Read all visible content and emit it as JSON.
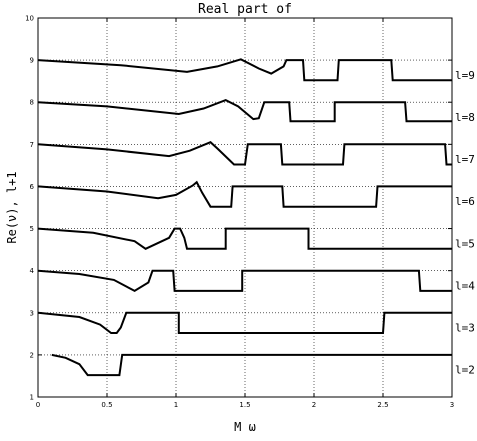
{
  "chart_data": {
    "type": "line",
    "title": "Real part of",
    "xlabel": "M ω",
    "ylabel": "Re(ν), l+1",
    "xlim": [
      0,
      3
    ],
    "ylim": [
      1,
      10
    ],
    "x_ticks": [
      0,
      0.5,
      1,
      1.5,
      2,
      2.5,
      3
    ],
    "x_tick_labels": [
      "0",
      "0.5",
      "1",
      "1.5",
      "2",
      "2.5",
      "3"
    ],
    "y_ticks": [
      1,
      2,
      3,
      4,
      5,
      6,
      7,
      8,
      9,
      10
    ],
    "y_tick_labels": [
      "1",
      "2",
      "3",
      "4",
      "5",
      "6",
      "7",
      "8",
      "9",
      "10"
    ],
    "grid": true,
    "series": [
      {
        "label": "l=2",
        "label_y": 1.65,
        "points": [
          [
            0.1,
            2.0
          ],
          [
            0.2,
            1.93
          ],
          [
            0.3,
            1.78
          ],
          [
            0.36,
            1.52
          ],
          [
            0.59,
            1.52
          ],
          [
            0.61,
            2.0
          ],
          [
            3.0,
            2.0
          ]
        ]
      },
      {
        "label": "l=3",
        "label_y": 2.65,
        "points": [
          [
            0.0,
            3.0
          ],
          [
            0.3,
            2.9
          ],
          [
            0.45,
            2.72
          ],
          [
            0.53,
            2.52
          ],
          [
            0.57,
            2.52
          ],
          [
            0.6,
            2.65
          ],
          [
            0.64,
            3.0
          ],
          [
            1.02,
            3.0
          ],
          [
            1.02,
            2.52
          ],
          [
            2.5,
            2.52
          ],
          [
            2.51,
            3.0
          ],
          [
            3.0,
            3.0
          ]
        ]
      },
      {
        "label": "l=4",
        "label_y": 3.65,
        "points": [
          [
            0.0,
            4.0
          ],
          [
            0.3,
            3.92
          ],
          [
            0.55,
            3.78
          ],
          [
            0.7,
            3.52
          ],
          [
            0.8,
            3.72
          ],
          [
            0.83,
            4.0
          ],
          [
            0.98,
            4.0
          ],
          [
            0.99,
            3.52
          ],
          [
            1.48,
            3.52
          ],
          [
            1.48,
            4.0
          ],
          [
            2.76,
            4.0
          ],
          [
            2.77,
            3.52
          ],
          [
            3.0,
            3.52
          ]
        ]
      },
      {
        "label": "l=5",
        "label_y": 4.65,
        "points": [
          [
            0.0,
            5.0
          ],
          [
            0.4,
            4.9
          ],
          [
            0.7,
            4.7
          ],
          [
            0.78,
            4.52
          ],
          [
            0.95,
            4.78
          ],
          [
            0.99,
            5.0
          ],
          [
            1.03,
            5.0
          ],
          [
            1.06,
            4.78
          ],
          [
            1.08,
            4.52
          ],
          [
            1.36,
            4.52
          ],
          [
            1.36,
            5.0
          ],
          [
            1.96,
            5.0
          ],
          [
            1.96,
            4.52
          ],
          [
            3.0,
            4.52
          ]
        ]
      },
      {
        "label": "l=6",
        "label_y": 5.65,
        "points": [
          [
            0.0,
            6.0
          ],
          [
            0.5,
            5.88
          ],
          [
            0.87,
            5.72
          ],
          [
            1.0,
            5.8
          ],
          [
            1.12,
            6.02
          ],
          [
            1.15,
            6.1
          ],
          [
            1.19,
            5.85
          ],
          [
            1.25,
            5.52
          ],
          [
            1.4,
            5.52
          ],
          [
            1.41,
            6.0
          ],
          [
            1.77,
            6.0
          ],
          [
            1.78,
            5.52
          ],
          [
            2.45,
            5.52
          ],
          [
            2.46,
            6.0
          ],
          [
            3.0,
            6.0
          ]
        ]
      },
      {
        "label": "l=7",
        "label_y": 6.65,
        "points": [
          [
            0.0,
            7.0
          ],
          [
            0.5,
            6.88
          ],
          [
            0.95,
            6.72
          ],
          [
            1.1,
            6.85
          ],
          [
            1.25,
            7.05
          ],
          [
            1.3,
            6.9
          ],
          [
            1.42,
            6.52
          ],
          [
            1.5,
            6.52
          ],
          [
            1.52,
            7.0
          ],
          [
            1.76,
            7.0
          ],
          [
            1.77,
            6.52
          ],
          [
            2.21,
            6.52
          ],
          [
            2.22,
            7.0
          ],
          [
            2.95,
            7.0
          ],
          [
            2.96,
            6.52
          ],
          [
            3.0,
            6.52
          ]
        ]
      },
      {
        "label": "l=8",
        "label_y": 7.65,
        "points": [
          [
            0.0,
            8.0
          ],
          [
            0.5,
            7.9
          ],
          [
            1.02,
            7.72
          ],
          [
            1.2,
            7.85
          ],
          [
            1.36,
            8.05
          ],
          [
            1.45,
            7.9
          ],
          [
            1.56,
            7.6
          ],
          [
            1.6,
            7.62
          ],
          [
            1.64,
            8.0
          ],
          [
            1.82,
            8.0
          ],
          [
            1.83,
            7.55
          ],
          [
            2.15,
            7.55
          ],
          [
            2.15,
            8.0
          ],
          [
            2.66,
            8.0
          ],
          [
            2.67,
            7.55
          ],
          [
            3.0,
            7.55
          ]
        ]
      },
      {
        "label": "l=9",
        "label_y": 8.65,
        "points": [
          [
            0.0,
            9.0
          ],
          [
            0.6,
            8.88
          ],
          [
            1.08,
            8.72
          ],
          [
            1.3,
            8.85
          ],
          [
            1.47,
            9.02
          ],
          [
            1.6,
            8.8
          ],
          [
            1.69,
            8.68
          ],
          [
            1.78,
            8.85
          ],
          [
            1.8,
            9.0
          ],
          [
            1.92,
            9.0
          ],
          [
            1.93,
            8.52
          ],
          [
            2.17,
            8.52
          ],
          [
            2.18,
            9.0
          ],
          [
            2.56,
            9.0
          ],
          [
            2.57,
            8.52
          ],
          [
            3.0,
            8.52
          ]
        ]
      }
    ]
  }
}
